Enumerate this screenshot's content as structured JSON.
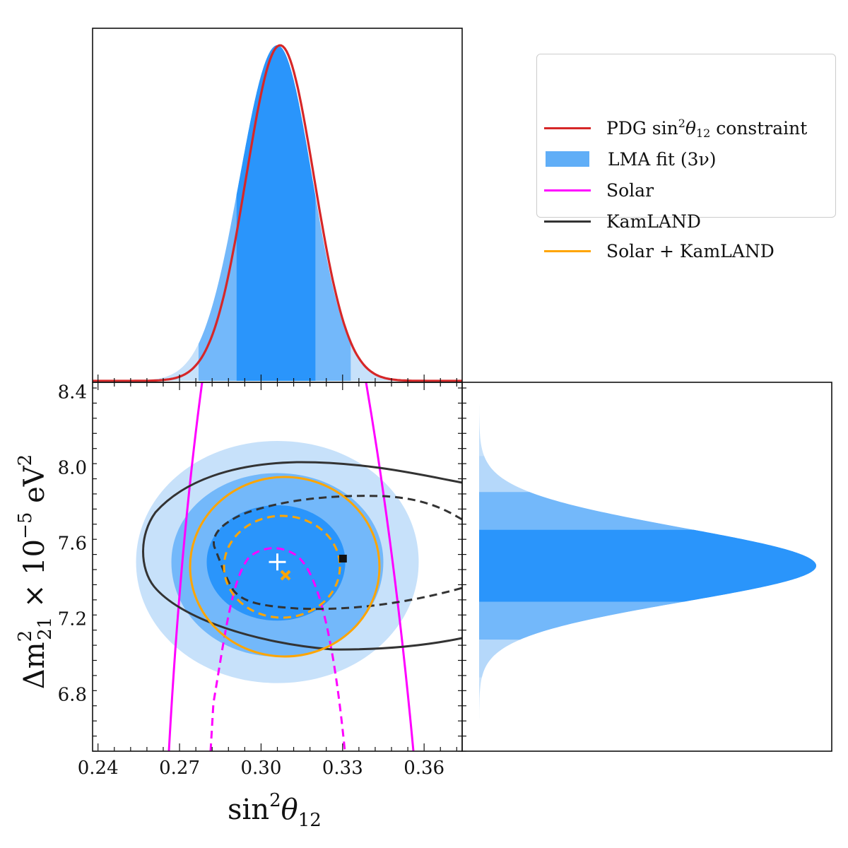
{
  "chart_data": {
    "type": "corner",
    "marginal_x": {
      "variable": "sin2_theta12",
      "lma_fit_peak": 0.306,
      "lma_fit_sigma": 0.0128,
      "lma_intervals": {
        "one_sigma": [
          0.291,
          0.32
        ],
        "two_sigma": [
          0.277,
          0.333
        ],
        "three_sigma": [
          0.262,
          0.345
        ]
      },
      "pdg_constraint_mean": 0.307,
      "pdg_constraint_sigma": 0.0125
    },
    "joint": {
      "xlim": [
        0.238,
        0.374
      ],
      "ylim": [
        6.5,
        8.45
      ],
      "xticks": [
        "0.24",
        "0.27",
        "0.30",
        "0.33",
        "0.36"
      ],
      "yticks": [
        "6.8",
        "7.2",
        "7.6",
        "8.0",
        "8.4"
      ],
      "xlabel": "sin²θ₁₂",
      "ylabel": "Δm²₂₁ × 10⁻⁵ eV²",
      "lma_contours": [
        {
          "level": "3σ",
          "center": [
            0.306,
            7.5
          ],
          "x_range": [
            0.254,
            0.358
          ],
          "y_range": [
            6.86,
            8.14
          ]
        },
        {
          "level": "2σ",
          "center": [
            0.306,
            7.5
          ],
          "x_range": [
            0.267,
            0.345
          ],
          "y_range": [
            7.0,
            7.97
          ]
        },
        {
          "level": "1σ",
          "center": [
            0.306,
            7.5
          ],
          "x_range": [
            0.28,
            0.331
          ],
          "y_range": [
            7.19,
            7.8
          ]
        }
      ],
      "best_fit_lma": [
        0.306,
        7.5
      ],
      "best_fit_solar_kamland": [
        0.309,
        7.43
      ],
      "best_fit_kamland": [
        0.33,
        7.52
      ]
    },
    "marginal_y": {
      "variable": "dm2_21",
      "lma_fit_peak": 7.48,
      "lma_intervals": {
        "one_sigma": [
          7.29,
          7.67
        ],
        "two_sigma": [
          7.09,
          7.87
        ],
        "three_sigma": [
          6.89,
          8.06
        ]
      }
    },
    "legend": [
      {
        "label": "PDG sin²θ₁₂ constraint",
        "color": "#d62728",
        "kind": "line"
      },
      {
        "label": "LMA fit (3ν)",
        "color": "#60aef7",
        "kind": "patch"
      },
      {
        "label": "Solar",
        "color": "#ff00ff",
        "kind": "line"
      },
      {
        "label": "KamLAND",
        "color": "#333333",
        "kind": "line"
      },
      {
        "label": "Solar + KamLAND",
        "color": "#ffa500",
        "kind": "line"
      }
    ],
    "colors": {
      "lma_1sigma": "#2a95fb",
      "lma_2sigma": "#73b8fa",
      "lma_3sigma": "#c7e1fa",
      "pdg": "#d62728",
      "solar": "#ff00ff",
      "kamland": "#333333",
      "solar_kamland": "#ffa500"
    }
  },
  "legend_text": {
    "pdg_pre": "PDG sin",
    "pdg_sup": "2",
    "pdg_theta": "θ",
    "pdg_sub": "12",
    "pdg_post": " constraint",
    "lma": "LMA fit (3ν)",
    "solar": "Solar",
    "kamland": "KamLAND",
    "solar_kamland": "Solar + KamLAND"
  },
  "xlabel_text": {
    "pre": "sin",
    "sup": "2",
    "theta": "θ",
    "sub": "12"
  },
  "ylabel_text": {
    "pre": "Δm",
    "sup": "2",
    "sub": "21",
    "post": " × 10",
    "exp": "−5",
    "unit": " eV",
    "unit_sup": "2"
  }
}
